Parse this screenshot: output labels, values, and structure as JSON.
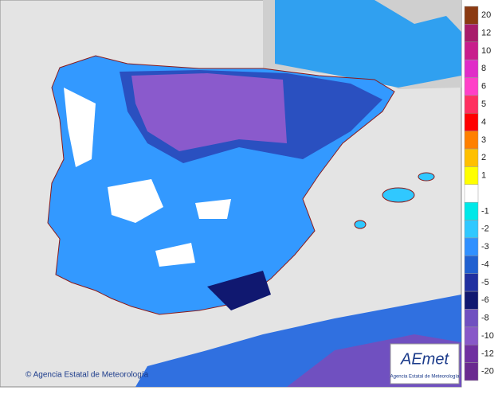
{
  "map": {
    "credit": "© Agencia Estatal de Meteorología",
    "logo": {
      "name": "AEmet",
      "subtitle": "Agencia Estatal de Meteorología"
    },
    "legend": [
      {
        "label": "20",
        "color": "#8b3a12"
      },
      {
        "label": "12",
        "color": "#a81c6a"
      },
      {
        "label": "10",
        "color": "#c81e8c"
      },
      {
        "label": "8",
        "color": "#e02dc8"
      },
      {
        "label": "6",
        "color": "#ff40c8"
      },
      {
        "label": "5",
        "color": "#ff3060"
      },
      {
        "label": "4",
        "color": "#ff0000"
      },
      {
        "label": "3",
        "color": "#ff8000"
      },
      {
        "label": "2",
        "color": "#ffc000"
      },
      {
        "label": "1",
        "color": "#ffff00"
      },
      {
        "color": "#ffffff"
      },
      {
        "label": "-1",
        "color": "#00e8e8"
      },
      {
        "label": "-2",
        "color": "#30c8ff"
      },
      {
        "label": "-3",
        "color": "#3090ff"
      },
      {
        "label": "-4",
        "color": "#2060d0"
      },
      {
        "label": "-5",
        "color": "#2030a0"
      },
      {
        "label": "-6",
        "color": "#101870"
      },
      {
        "label": "-8",
        "color": "#7050c0"
      },
      {
        "label": "-10",
        "color": "#8858c8"
      },
      {
        "label": "-12",
        "color": "#7030a0"
      },
      {
        "label": "-20",
        "color": "#6a2a90"
      }
    ]
  }
}
